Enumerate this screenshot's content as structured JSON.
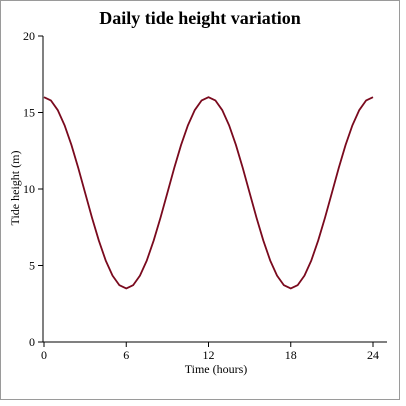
{
  "chart_data": {
    "type": "line",
    "title": "Daily tide height variation",
    "xlabel": "Time (hours)",
    "ylabel": "Tide height (m)",
    "xlim": [
      0,
      24
    ],
    "ylim": [
      0,
      20
    ],
    "xticks": [
      0,
      6,
      12,
      18,
      24
    ],
    "yticks": [
      0,
      5,
      10,
      15,
      20
    ],
    "grid": false,
    "series": [
      {
        "color": "#7a0a1e",
        "x": [
          0,
          0.5,
          1,
          1.5,
          2,
          2.5,
          3,
          3.5,
          4,
          4.5,
          5,
          5.5,
          6,
          6.5,
          7,
          7.5,
          8,
          8.5,
          9,
          9.5,
          10,
          10.5,
          11,
          11.5,
          12,
          12.5,
          13,
          13.5,
          14,
          14.5,
          15,
          15.5,
          16,
          16.5,
          17,
          17.5,
          18,
          18.5,
          19,
          19.5,
          20,
          20.5,
          21,
          21.5,
          22,
          22.5,
          23,
          23.5,
          24
        ],
        "y": [
          16.0,
          15.79,
          15.16,
          14.17,
          12.88,
          11.37,
          9.75,
          8.13,
          6.63,
          5.33,
          4.34,
          3.71,
          3.5,
          3.71,
          4.34,
          5.33,
          6.63,
          8.13,
          9.75,
          11.37,
          12.88,
          14.17,
          15.16,
          15.79,
          16.0,
          15.79,
          15.16,
          14.17,
          12.88,
          11.37,
          9.75,
          8.13,
          6.63,
          5.33,
          4.34,
          3.71,
          3.5,
          3.71,
          4.34,
          5.33,
          6.63,
          8.13,
          9.75,
          11.37,
          12.88,
          14.17,
          15.16,
          15.79,
          16.0
        ]
      }
    ]
  }
}
